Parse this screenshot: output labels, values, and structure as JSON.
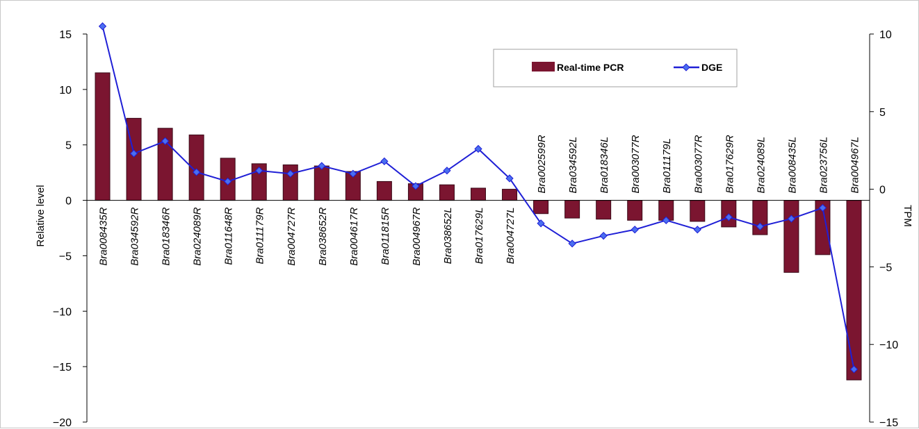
{
  "chart_data": {
    "type": "bar",
    "categories": [
      "Bra008435R",
      "Bra034592R",
      "Bra018346R",
      "Bra024089R",
      "Bra011648R",
      "Bra011179R",
      "Bra004727R",
      "Bra038652R",
      "Bra004617R",
      "Bra011815R",
      "Bra004967R",
      "Bra038652L",
      "Bra017629L",
      "Bra004727L",
      "Bra002599R",
      "Bra034592L",
      "Bra018346L",
      "Bra003077R",
      "Bra011179L",
      "Bra003077R",
      "Bra017629R",
      "Bra024089L",
      "Bra008435L",
      "Bra023756L",
      "Bra004967L"
    ],
    "series": [
      {
        "name": "Real-time PCR",
        "type": "bar",
        "axis": "left",
        "color": "#7b1530",
        "values": [
          11.5,
          7.4,
          6.5,
          5.9,
          3.8,
          3.3,
          3.2,
          3.1,
          2.6,
          1.7,
          1.5,
          1.4,
          1.1,
          1.0,
          -1.2,
          -1.6,
          -1.7,
          -1.8,
          -1.8,
          -1.9,
          -2.4,
          -3.1,
          -6.5,
          -4.9,
          -16.2
        ]
      },
      {
        "name": "DGE",
        "type": "line",
        "axis": "right",
        "color": "#1f1fd6",
        "values": [
          10.5,
          2.3,
          3.1,
          1.1,
          0.5,
          1.2,
          1.0,
          1.5,
          1.0,
          1.8,
          0.2,
          1.2,
          2.6,
          0.7,
          -2.2,
          -3.5,
          -3.0,
          -2.6,
          -2.0,
          -2.6,
          -1.8,
          -2.4,
          -1.9,
          -1.2,
          -11.6
        ]
      }
    ],
    "ylabel": "Relative level",
    "y2label": "TPM",
    "ylim": [
      -20,
      15
    ],
    "y2lim": [
      -15,
      10
    ],
    "yticks": [
      "15",
      "10",
      "5",
      "0",
      "−5",
      "−10",
      "−15",
      "−20"
    ],
    "y2ticks": [
      "10",
      "5",
      "0",
      "−5",
      "−10",
      "−15"
    ],
    "legend": {
      "position": "top-right",
      "items": [
        "Real-time PCR",
        "DGE"
      ]
    },
    "grid": false
  }
}
